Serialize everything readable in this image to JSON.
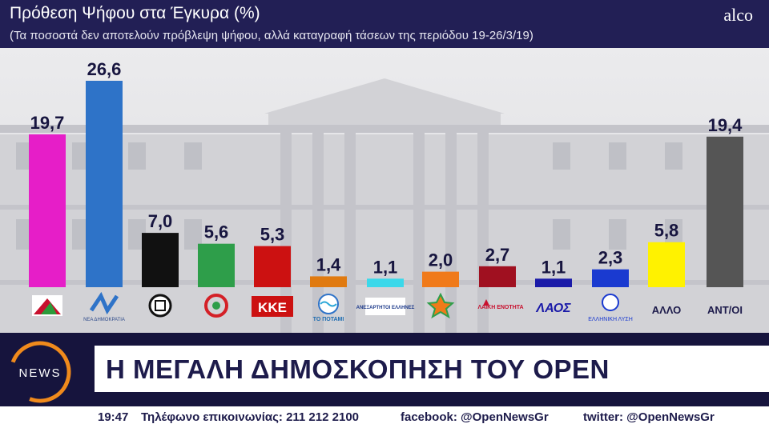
{
  "header": {
    "title": "Πρόθεση Ψήφου στα Έγκυρα (%)",
    "subtitle": "(Τα ποσοστά δεν αποτελούν πρόβλεψη ψήφου, αλλά καταγραφή τάσεων της περιόδου 19-26/3/19)",
    "brand": "alco"
  },
  "chart_data": {
    "type": "bar",
    "title": "Πρόθεση Ψήφου στα Έγκυρα (%)",
    "categories": [
      "ΣΥΡΙΖΑ",
      "ΝΕΑ ΔΗΜΟΚΡΑΤΙΑ",
      "ΧΡΥΣΗ ΑΥΓΗ",
      "ΚΙΝΑΛ",
      "ΚΚΕ",
      "ΤΟ ΠΟΤΑΜΙ",
      "ΑΝΕΞΑΡΤΗΤΟΙ ΕΛΛΗΝΕΣ",
      "ΕΝΩΣΗ ΚΕΝΤΡΩΩΝ",
      "ΛΑΙΚΗ ΕΝΟΤΗΤΑ",
      "ΛΑΟΣ",
      "ΕΛΛΗΝΙΚΗ ΛΥΣΗ",
      "ΑΛΛΟ",
      "ΑΝΤ/ΟΙ"
    ],
    "values": [
      19.7,
      26.6,
      7.0,
      5.6,
      5.3,
      1.4,
      1.1,
      2.0,
      2.7,
      1.1,
      2.3,
      5.8,
      19.4
    ],
    "value_labels": [
      "19,7",
      "26,6",
      "7,0",
      "5,6",
      "5,3",
      "1,4",
      "1,1",
      "2,0",
      "2,7",
      "1,1",
      "2,3",
      "5,8",
      "19,4"
    ],
    "colors": [
      "#e61ec8",
      "#2e73c8",
      "#111111",
      "#2e9e4a",
      "#cc1111",
      "#e07a10",
      "#3ad8ea",
      "#f07a1a",
      "#a01020",
      "#1a1aa8",
      "#1a3ad0",
      "#fff200",
      "#555555"
    ],
    "logo_texts": [
      "",
      "ΝΕΑ ΔΗΜΟΚΡΑΤΙΑ",
      "",
      "",
      "ΚΚΕ",
      "ΤΟ ΠΟΤΑΜΙ",
      "ΑΝΕΞΑΡΤΗΤΟΙ ΕΛΛΗΝΕΣ",
      "",
      "ΛΑΙΚΗ ΕΝΟΤΗΤΑ",
      "ΛΑΟΣ",
      "ΕΛΛΗΝΙΚΗ ΛΥΣΗ",
      "ΑΛΛΟ",
      "ΑΝΤ/ΟΙ"
    ],
    "ylim": [
      0,
      28
    ],
    "grid": false,
    "xlabel": "",
    "ylabel": ""
  },
  "banner": {
    "logo_text": "NEWS",
    "headline": "Η ΜΕΓΑΛΗ ΔΗΜΟΣΚΟΠΗΣΗ ΤΟΥ OPEN"
  },
  "ticker": {
    "time": "19:47",
    "phone": "Τηλέφωνο επικοινωνίας: 211 212 2100",
    "facebook": "facebook: @OpenNewsGr",
    "twitter": "twitter: @OpenNewsGr"
  }
}
